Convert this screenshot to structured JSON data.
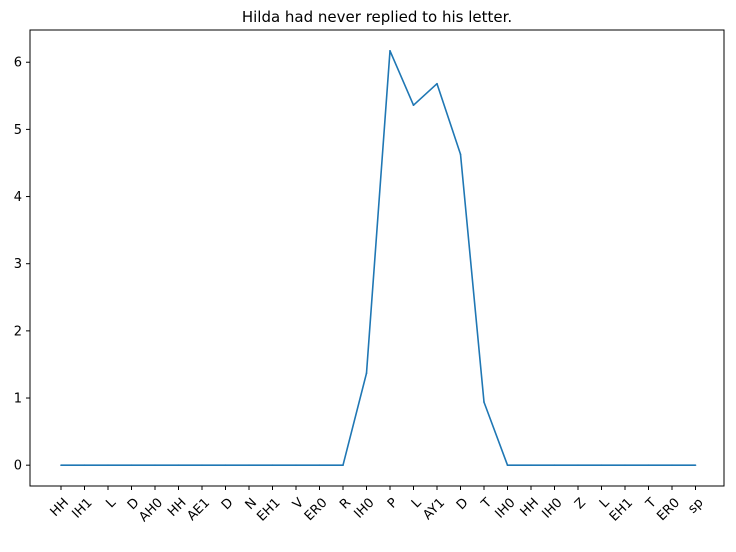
{
  "chart_data": {
    "type": "line",
    "title": "Hilda had never replied to his letter.",
    "xlabel": "",
    "ylabel": "",
    "categories": [
      "HH",
      "IH1",
      "L",
      "D",
      "AH0",
      "HH",
      "AE1",
      "D",
      "N",
      "EH1",
      "V",
      "ER0",
      "R",
      "IH0",
      "P",
      "L",
      "AY1",
      "D",
      "T",
      "IH0",
      "HH",
      "IH0",
      "Z",
      "L",
      "EH1",
      "T",
      "ER0",
      "sp"
    ],
    "values": [
      0,
      0,
      0,
      0,
      0,
      0,
      0,
      0,
      0,
      0,
      0,
      0,
      0,
      1.37,
      6.17,
      5.36,
      5.68,
      4.63,
      0.94,
      0,
      0,
      0,
      0,
      0,
      0,
      0,
      0,
      0
    ],
    "yticks": [
      0,
      1,
      2,
      3,
      4,
      5,
      6
    ],
    "ylim": [
      -0.31,
      6.48
    ],
    "grid": false,
    "line_color": "#1f77b4"
  }
}
